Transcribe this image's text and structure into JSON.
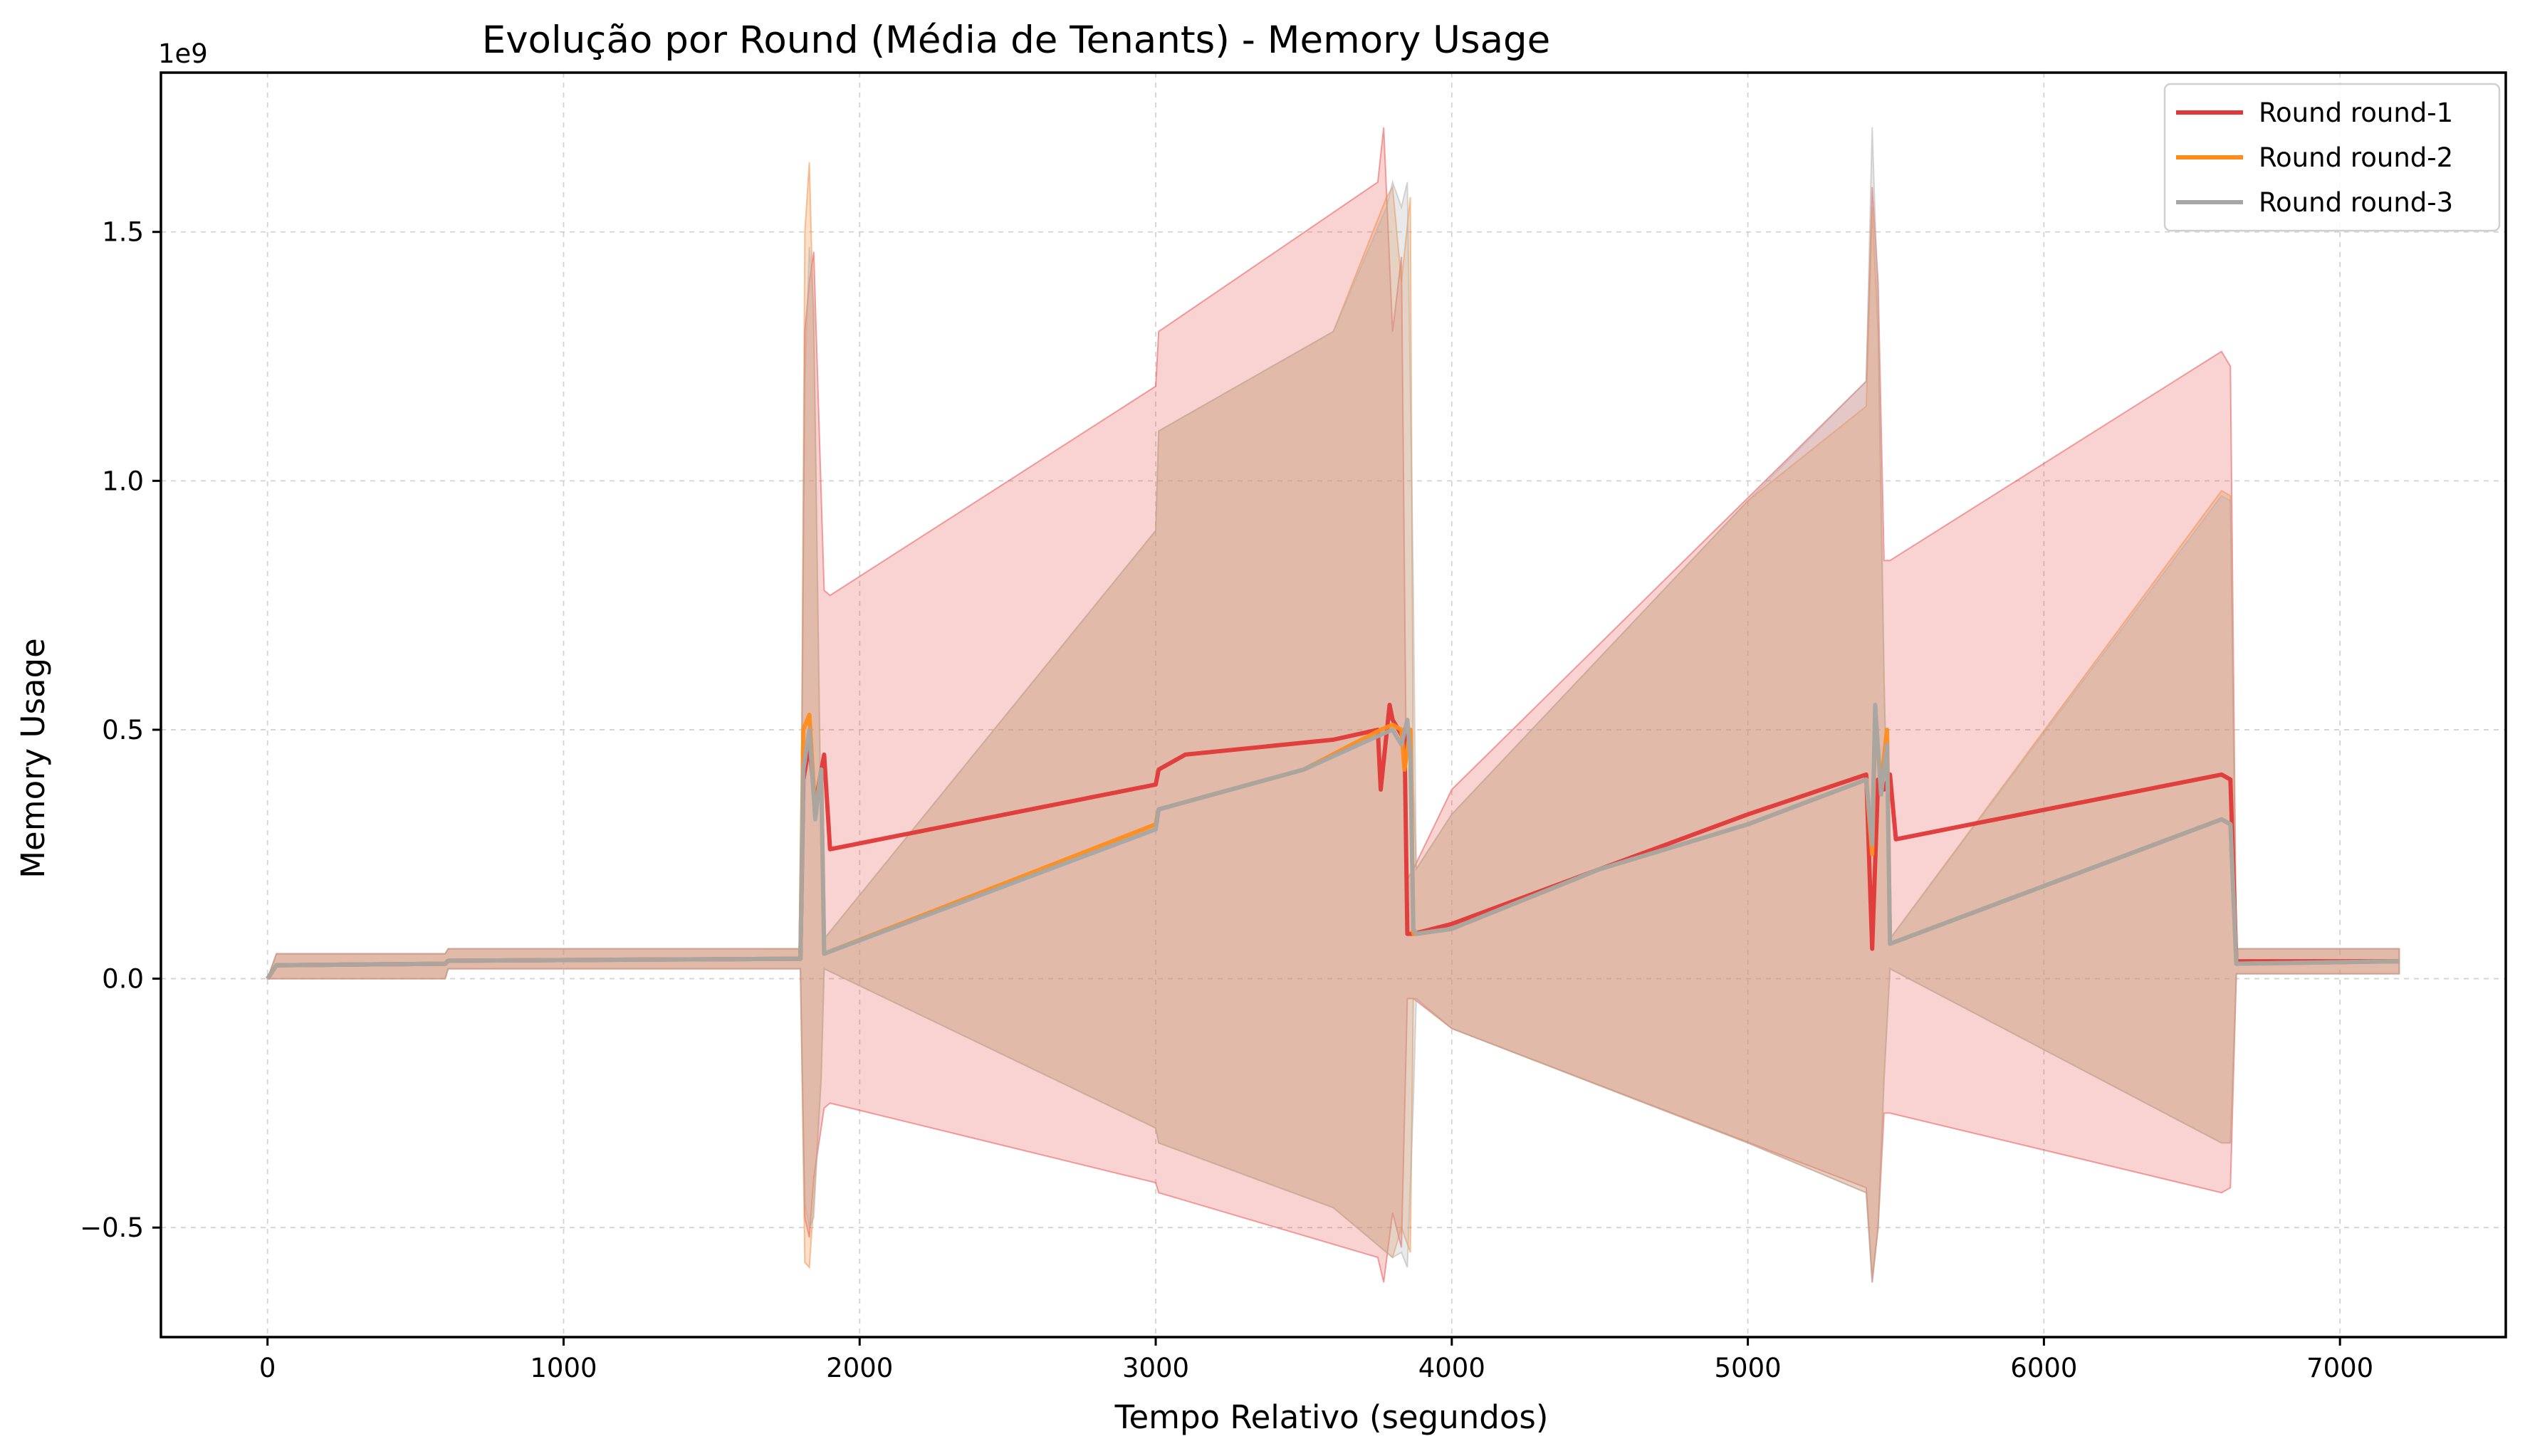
{
  "chart_data": {
    "type": "line",
    "title": "Evolução por Round (Média de Tenants) - Memory Usage",
    "xlabel": "Tempo Relativo (segundos)",
    "ylabel": "Memory Usage",
    "y_offset_label": "1e9",
    "xlim": [
      -360,
      7560
    ],
    "ylim": [
      -0.72,
      1.82
    ],
    "x_ticks": [
      0,
      1000,
      2000,
      3000,
      4000,
      5000,
      6000,
      7000
    ],
    "y_ticks": [
      -0.5,
      0.0,
      0.5,
      1.0,
      1.5
    ],
    "y_tick_labels": [
      "−0.5",
      "0.0",
      "0.5",
      "1.0",
      "1.5"
    ],
    "grid": true,
    "legend_position": "top-right",
    "series": [
      {
        "name": "Round round-1",
        "color": "#e03838",
        "x": [
          0,
          30,
          600,
          610,
          1800,
          1810,
          1830,
          1850,
          1880,
          1900,
          3000,
          3010,
          3100,
          3600,
          3750,
          3760,
          3790,
          3800,
          3830,
          3840,
          3850,
          3870,
          4000,
          4500,
          5000,
          5400,
          5420,
          5440,
          5460,
          5480,
          5500,
          6600,
          6630,
          6650,
          7200
        ],
        "y": [
          0.0,
          0.027,
          0.03,
          0.036,
          0.04,
          0.4,
          0.47,
          0.35,
          0.45,
          0.26,
          0.39,
          0.42,
          0.45,
          0.48,
          0.5,
          0.38,
          0.55,
          0.52,
          0.49,
          0.5,
          0.09,
          0.09,
          0.11,
          0.22,
          0.33,
          0.41,
          0.06,
          0.4,
          0.38,
          0.41,
          0.28,
          0.41,
          0.4,
          0.035,
          0.035
        ]
      },
      {
        "name": "Round round-2",
        "color": "#ff8c1a",
        "x": [
          0,
          30,
          600,
          610,
          1800,
          1810,
          1830,
          1850,
          1870,
          1880,
          3000,
          3010,
          3500,
          3760,
          3800,
          3830,
          3840,
          3860,
          3870,
          3880,
          4000,
          4500,
          5000,
          5400,
          5420,
          5430,
          5450,
          5470,
          5480,
          6600,
          6630,
          6650,
          7200
        ],
        "y": [
          0.0,
          0.027,
          0.03,
          0.036,
          0.04,
          0.5,
          0.53,
          0.33,
          0.42,
          0.05,
          0.31,
          0.34,
          0.42,
          0.5,
          0.51,
          0.5,
          0.42,
          0.5,
          0.09,
          0.09,
          0.1,
          0.22,
          0.31,
          0.4,
          0.25,
          0.52,
          0.39,
          0.5,
          0.07,
          0.32,
          0.31,
          0.03,
          0.035
        ]
      },
      {
        "name": "Round round-3",
        "color": "#a6a6a6",
        "x": [
          0,
          30,
          600,
          610,
          1800,
          1810,
          1830,
          1850,
          1870,
          1880,
          3000,
          3010,
          3500,
          3760,
          3800,
          3830,
          3850,
          3860,
          3870,
          3880,
          4000,
          4500,
          5000,
          5400,
          5420,
          5430,
          5450,
          5470,
          5480,
          6600,
          6630,
          6650,
          7200
        ],
        "y": [
          0.0,
          0.027,
          0.03,
          0.036,
          0.04,
          0.42,
          0.5,
          0.32,
          0.42,
          0.05,
          0.3,
          0.34,
          0.42,
          0.49,
          0.5,
          0.47,
          0.52,
          0.45,
          0.1,
          0.09,
          0.1,
          0.22,
          0.31,
          0.4,
          0.27,
          0.55,
          0.37,
          0.47,
          0.07,
          0.32,
          0.31,
          0.03,
          0.035
        ]
      }
    ],
    "bands": [
      {
        "series": "Round round-1",
        "color": "#e84a4a",
        "opacity": 0.25,
        "x": [
          0,
          30,
          600,
          610,
          1800,
          1815,
          1830,
          1845,
          1880,
          1900,
          3000,
          3010,
          3750,
          3770,
          3800,
          3830,
          3850,
          3870,
          4000,
          5400,
          5420,
          5440,
          5460,
          5480,
          6600,
          6630,
          6650,
          7200
        ],
        "upper": [
          0.0,
          0.05,
          0.05,
          0.06,
          0.06,
          1.3,
          1.4,
          1.46,
          0.78,
          0.77,
          1.19,
          1.3,
          1.6,
          1.71,
          1.3,
          1.45,
          0.2,
          0.22,
          0.38,
          1.2,
          1.59,
          1.4,
          0.84,
          0.84,
          1.26,
          1.23,
          0.06,
          0.06
        ],
        "lower": [
          0.0,
          0.0,
          0.0,
          0.02,
          0.02,
          -0.48,
          -0.52,
          -0.4,
          -0.26,
          -0.25,
          -0.41,
          -0.43,
          -0.56,
          -0.61,
          -0.47,
          -0.54,
          -0.04,
          -0.04,
          -0.1,
          -0.42,
          -0.61,
          -0.5,
          -0.27,
          -0.27,
          -0.43,
          -0.42,
          0.01,
          0.01
        ]
      },
      {
        "series": "Round round-2",
        "color": "#f28c3c",
        "opacity": 0.28,
        "x": [
          0,
          30,
          600,
          610,
          1800,
          1815,
          1830,
          1845,
          1870,
          1880,
          3000,
          3010,
          3600,
          3780,
          3800,
          3830,
          3860,
          3870,
          3880,
          4000,
          5000,
          5400,
          5420,
          5440,
          5460,
          5480,
          6600,
          6630,
          6650,
          7200
        ],
        "upper": [
          0.0,
          0.05,
          0.05,
          0.06,
          0.06,
          1.5,
          1.64,
          1.3,
          0.3,
          0.08,
          0.9,
          1.1,
          1.3,
          1.57,
          1.59,
          1.4,
          1.57,
          0.4,
          0.22,
          0.33,
          0.96,
          1.15,
          1.55,
          1.3,
          0.6,
          0.08,
          0.98,
          0.97,
          0.06,
          0.06
        ],
        "lower": [
          0.0,
          0.0,
          0.0,
          0.02,
          0.02,
          -0.57,
          -0.58,
          -0.45,
          -0.2,
          0.02,
          -0.3,
          -0.33,
          -0.46,
          -0.55,
          -0.56,
          -0.5,
          -0.55,
          -0.04,
          -0.04,
          -0.1,
          -0.33,
          -0.43,
          -0.6,
          -0.5,
          -0.2,
          0.02,
          -0.33,
          -0.33,
          0.01,
          0.01
        ]
      },
      {
        "series": "Round round-3",
        "color": "#b0b0b0",
        "opacity": 0.28,
        "x": [
          0,
          30,
          600,
          610,
          1800,
          1815,
          1830,
          1845,
          1870,
          1880,
          3000,
          3010,
          3600,
          3780,
          3800,
          3830,
          3850,
          3870,
          3880,
          4000,
          5000,
          5400,
          5420,
          5440,
          5460,
          5480,
          6600,
          6630,
          6650,
          7200
        ],
        "upper": [
          0.0,
          0.05,
          0.05,
          0.06,
          0.06,
          1.2,
          1.47,
          1.35,
          0.25,
          0.08,
          0.9,
          1.1,
          1.3,
          1.55,
          1.6,
          1.55,
          1.6,
          0.78,
          0.22,
          0.33,
          0.96,
          1.2,
          1.71,
          1.35,
          0.6,
          0.08,
          0.97,
          0.96,
          0.06,
          0.06
        ],
        "lower": [
          0.0,
          0.0,
          0.0,
          0.02,
          0.02,
          -0.45,
          -0.5,
          -0.48,
          -0.2,
          0.02,
          -0.3,
          -0.33,
          -0.46,
          -0.55,
          -0.56,
          -0.55,
          -0.58,
          -0.25,
          -0.04,
          -0.1,
          -0.33,
          -0.43,
          -0.61,
          -0.5,
          -0.2,
          0.02,
          -0.33,
          -0.33,
          0.01,
          0.01
        ]
      }
    ]
  }
}
